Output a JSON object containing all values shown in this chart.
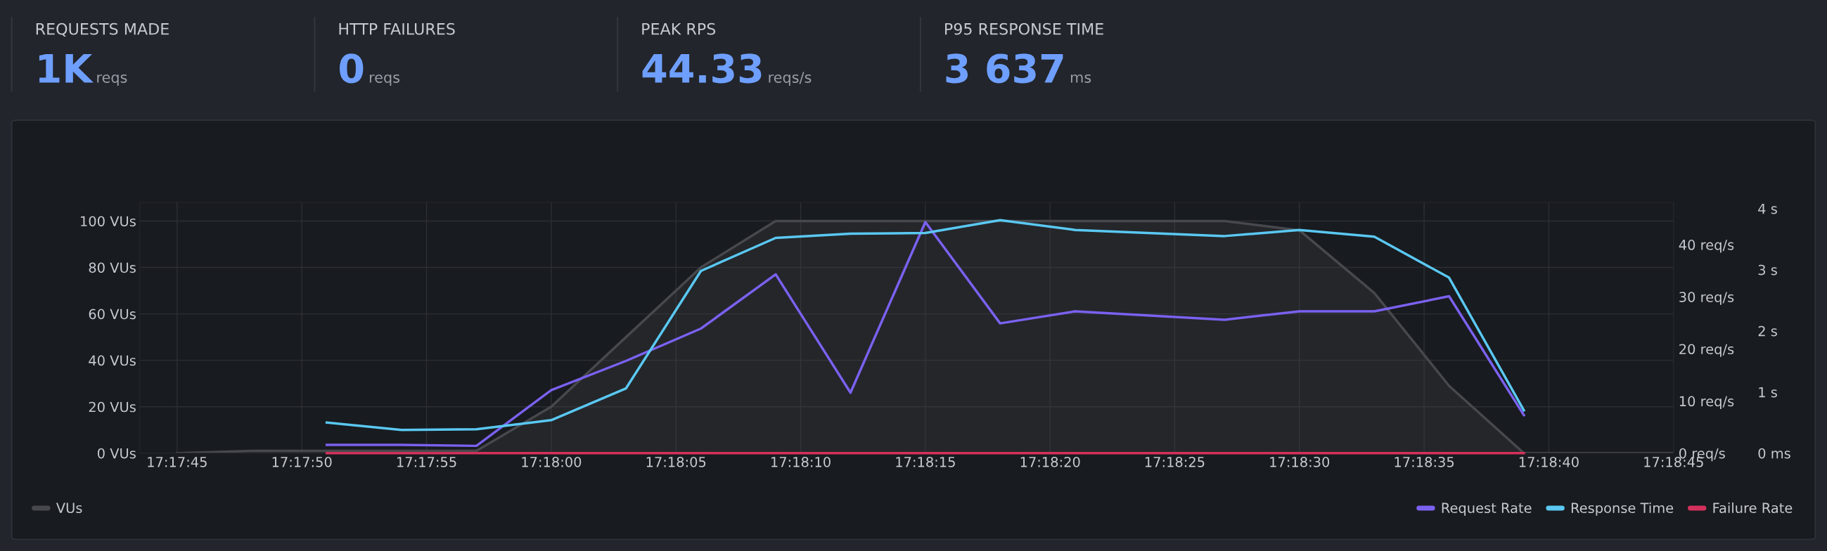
{
  "chart_data": [
    {
      "type": "other",
      "annotations": [
        "REQUESTS MADE",
        "1K",
        "reqs",
        "HTTP FAILURES",
        "0",
        "reqs",
        "PEAK RPS",
        "44.33",
        "reqs/s",
        "P95 RESPONSE TIME",
        "3 637",
        "ms"
      ]
    },
    {
      "type": "line",
      "grid": true,
      "legend": "bottom",
      "xlim": [
        17.295417,
        17.3125
      ],
      "xticks": [
        {
          "value": 17.295833,
          "label": "17:17:45"
        },
        {
          "value": 17.297222,
          "label": "17:17:50"
        },
        {
          "value": 17.298611,
          "label": "17:17:55"
        },
        {
          "value": 17.3,
          "label": "17:18:00"
        },
        {
          "value": 17.301389,
          "label": "17:18:05"
        },
        {
          "value": 17.302778,
          "label": "17:18:10"
        },
        {
          "value": 17.304167,
          "label": "17:18:15"
        },
        {
          "value": 17.305556,
          "label": "17:18:20"
        },
        {
          "value": 17.306944,
          "label": "17:18:25"
        },
        {
          "value": 17.308333,
          "label": "17:18:30"
        },
        {
          "value": 17.309722,
          "label": "17:18:35"
        },
        {
          "value": 17.311111,
          "label": "17:18:40"
        },
        {
          "value": 17.3125,
          "label": "17:18:45"
        }
      ],
      "ylim": [
        0,
        108
      ],
      "yticks": [
        {
          "value": 0,
          "label": "0 VUs"
        },
        {
          "value": 20,
          "label": "20 VUs"
        },
        {
          "value": 40,
          "label": "40 VUs"
        },
        {
          "value": 60,
          "label": "60 VUs"
        },
        {
          "value": 80,
          "label": "80 VUs"
        },
        {
          "value": 100,
          "label": "100 VUs"
        }
      ],
      "y2lim": [
        0,
        48.1
      ],
      "y2ticks": [
        {
          "value": 0,
          "label": "0 req/s"
        },
        {
          "value": 10,
          "label": "10 req/s"
        },
        {
          "value": 20,
          "label": "20 req/s"
        },
        {
          "value": 30,
          "label": "30 req/s"
        },
        {
          "value": 40,
          "label": "40 req/s"
        }
      ],
      "y3lim": [
        0,
        4.1
      ],
      "y3ticks": [
        {
          "value": 0,
          "label": "0 ms"
        },
        {
          "value": 1,
          "label": "1 s"
        },
        {
          "value": 2,
          "label": "2 s"
        },
        {
          "value": 3,
          "label": "3 s"
        },
        {
          "value": 4,
          "label": "4 s"
        }
      ],
      "series": [
        {
          "name": "VUs",
          "type": "area",
          "color": "#47484d",
          "x": [
            17.295833,
            17.296667,
            17.2975,
            17.298333,
            17.299167,
            17.3,
            17.300833,
            17.301667,
            17.3025,
            17.303333,
            17.304167,
            17.305,
            17.305833,
            17.306667,
            17.3075,
            17.308333,
            17.309167,
            17.31,
            17.310833,
            17.311667,
            17.3125
          ],
          "values": [
            0,
            1,
            1,
            1,
            1,
            20,
            50,
            80,
            100,
            100,
            100,
            100,
            100,
            100,
            100,
            96,
            69,
            29,
            0,
            0,
            0
          ]
        },
        {
          "name": "Request Rate",
          "axis": "y2",
          "color": "#7b61f0",
          "x": [
            17.2975,
            17.298333,
            17.299167,
            17.3,
            17.300833,
            17.301667,
            17.3025,
            17.303333,
            17.304167,
            17.305,
            17.305833,
            17.3075,
            17.308333,
            17.309167,
            17.31,
            17.310833
          ],
          "values": [
            1.6,
            1.6,
            1.4,
            12.1,
            17.7,
            23.9,
            34.3,
            11.6,
            44.33,
            24.9,
            27.2,
            25.6,
            27.2,
            27.2,
            30.1,
            7.3
          ]
        },
        {
          "name": "Response Time",
          "axis": "y3",
          "color": "#5ac8f2",
          "x": [
            17.2975,
            17.298333,
            17.299167,
            17.3,
            17.300833,
            17.301667,
            17.3025,
            17.303333,
            17.304167,
            17.305,
            17.305833,
            17.3075,
            17.308333,
            17.309167,
            17.31,
            17.310833
          ],
          "values": [
            0.5,
            0.38,
            0.39,
            0.54,
            1.06,
            2.98,
            3.52,
            3.59,
            3.6,
            3.81,
            3.65,
            3.55,
            3.65,
            3.54,
            2.87,
            0.7
          ]
        },
        {
          "name": "Failure Rate",
          "axis": "y2",
          "color": "#d2315c",
          "x": [
            17.2975,
            17.298333,
            17.299167,
            17.3,
            17.300833,
            17.301667,
            17.3025,
            17.303333,
            17.304167,
            17.305,
            17.305833,
            17.3075,
            17.308333,
            17.309167,
            17.31,
            17.310833
          ],
          "values": [
            0,
            0,
            0,
            0,
            0,
            0,
            0,
            0,
            0,
            0,
            0,
            0,
            0,
            0,
            0,
            0
          ]
        }
      ]
    }
  ]
}
